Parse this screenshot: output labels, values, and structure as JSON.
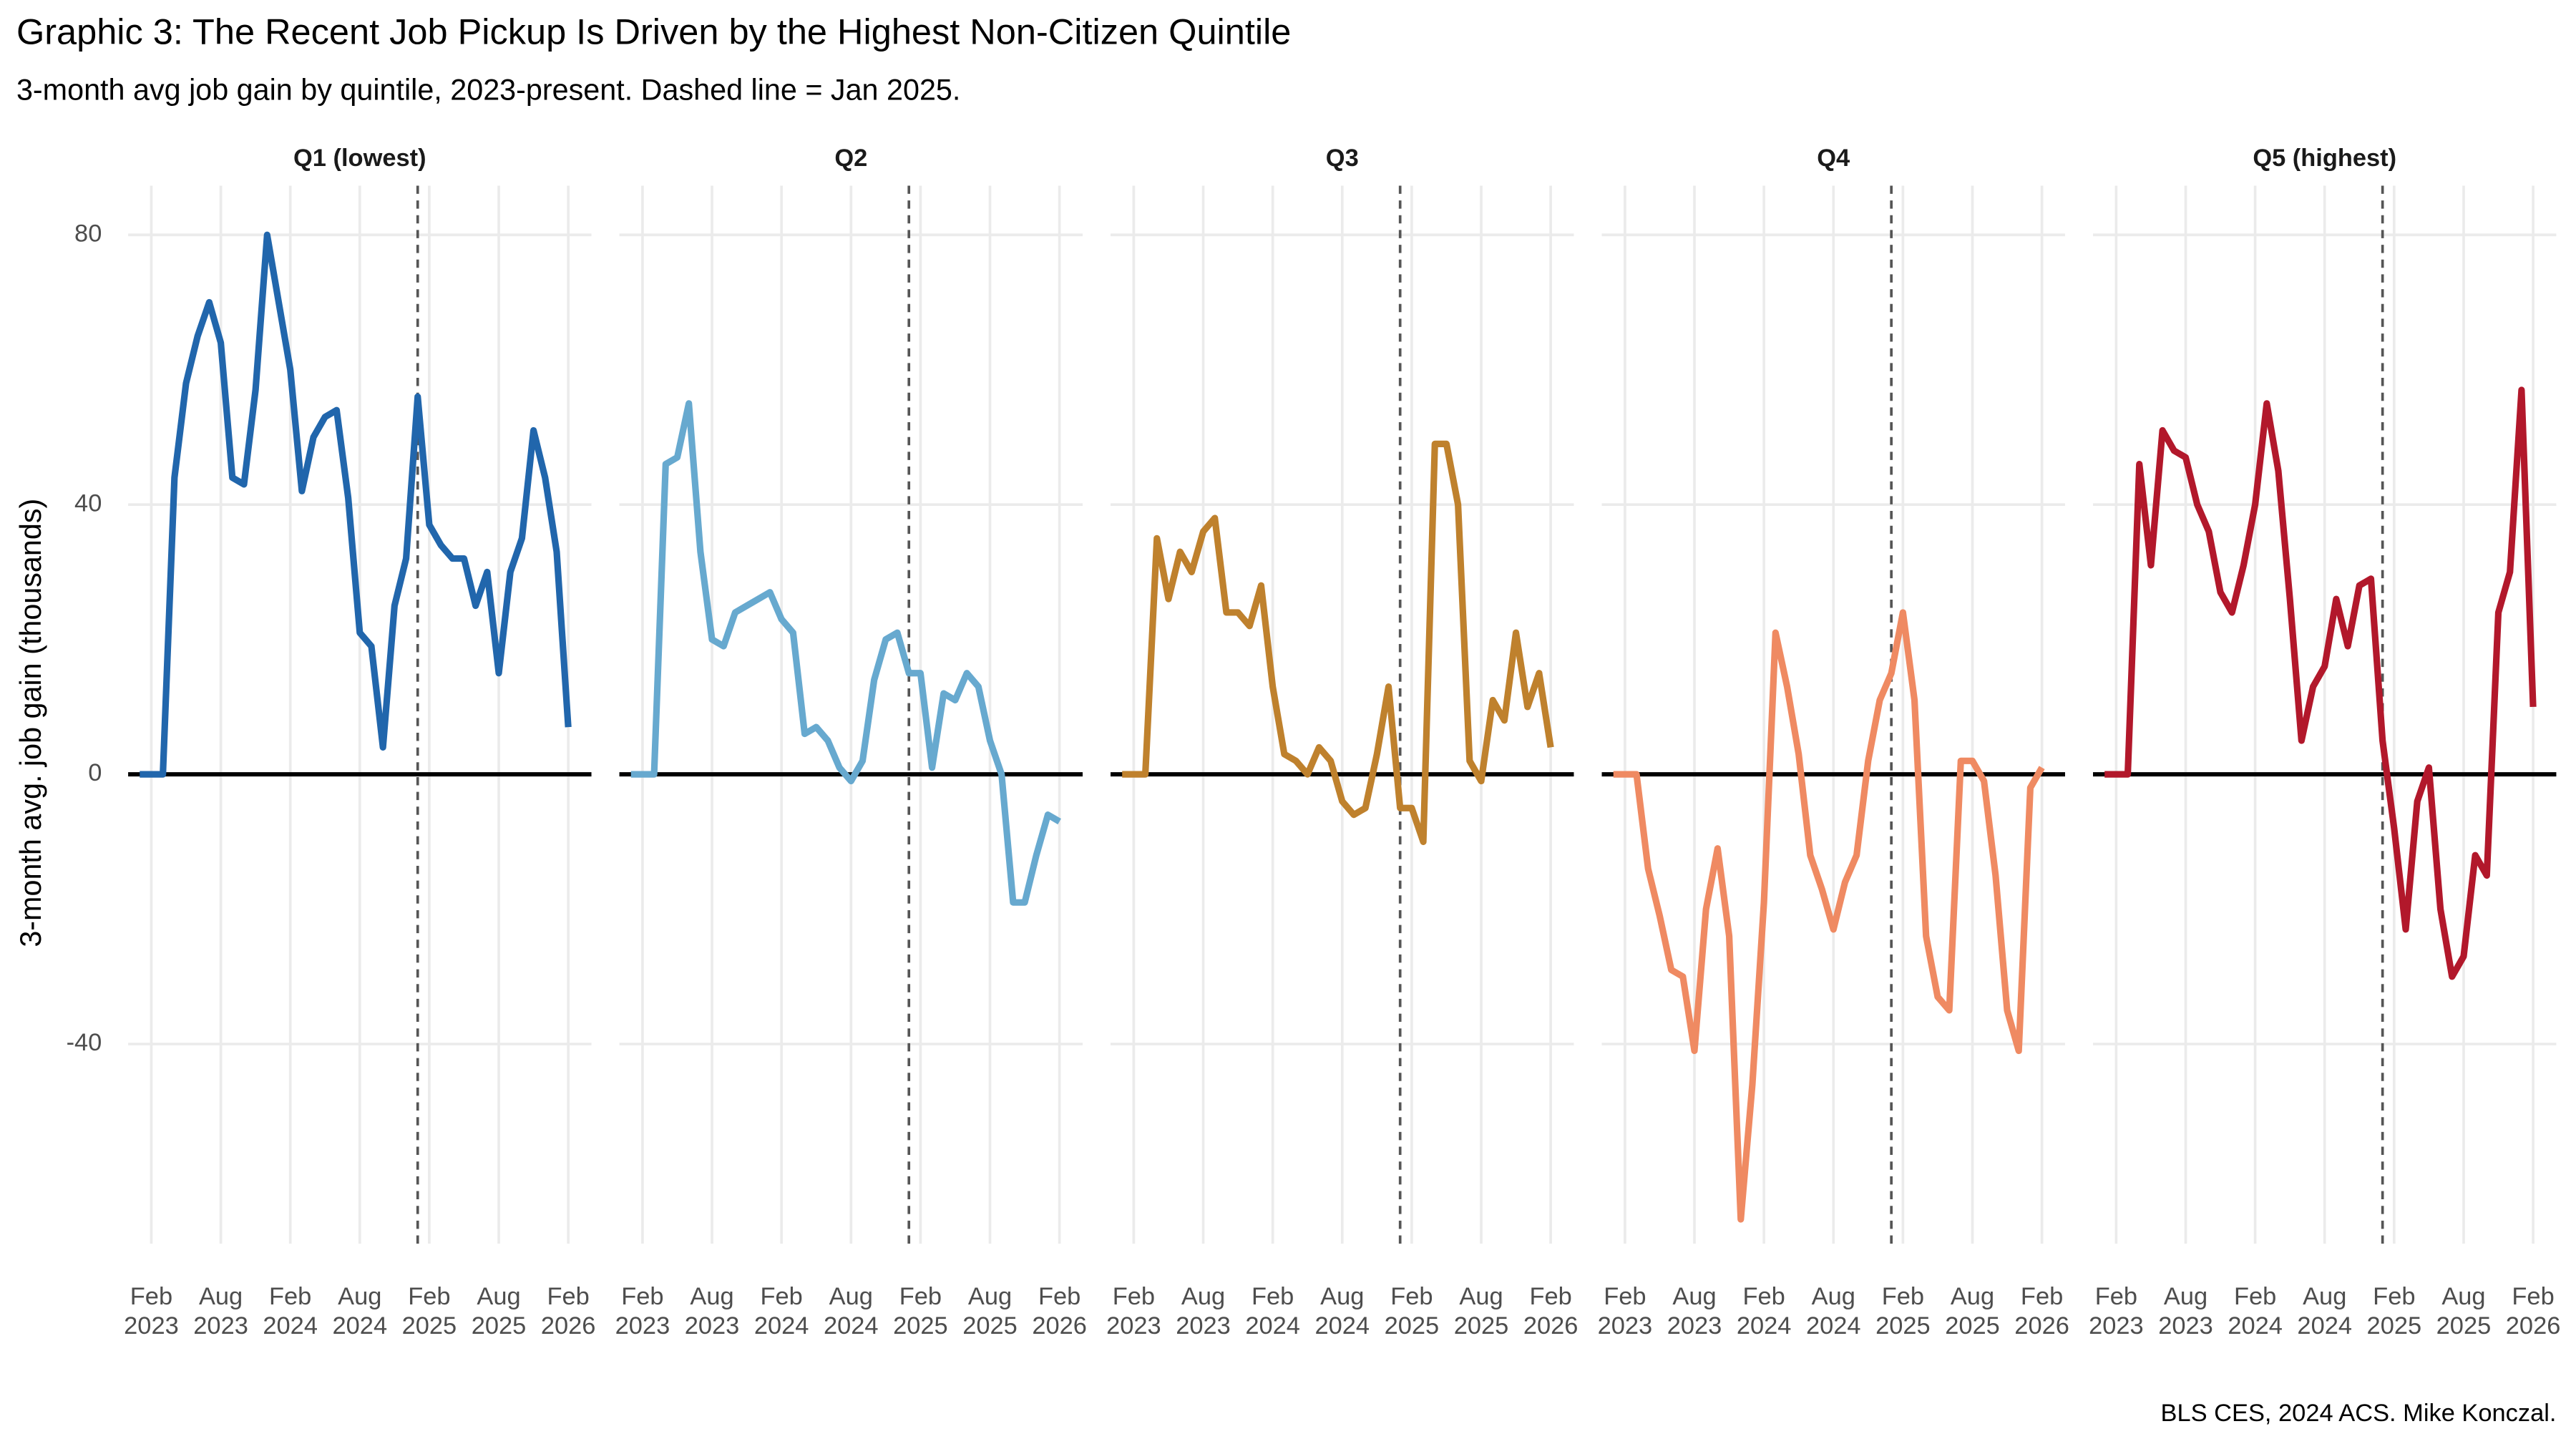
{
  "title": "Graphic 3: The Recent Job Pickup Is Driven by the Highest Non-Citizen Quintile",
  "subtitle": "3-month avg job gain by quintile, 2023-present. Dashed line = Jan 2025.",
  "y_label": "3-month avg. job gain (thousands)",
  "caption": "BLS CES, 2024 ACS. Mike Konczal.",
  "chart_data": [
    {
      "type": "line",
      "title": "Q1 (lowest)",
      "color": "#2166ac",
      "vline": "2025-01",
      "hline": 0,
      "grid": true,
      "x": [
        "2023-01",
        "2023-02",
        "2023-03",
        "2023-04",
        "2023-05",
        "2023-06",
        "2023-07",
        "2023-08",
        "2023-09",
        "2023-10",
        "2023-11",
        "2023-12",
        "2024-01",
        "2024-02",
        "2024-03",
        "2024-04",
        "2024-05",
        "2024-06",
        "2024-07",
        "2024-08",
        "2024-09",
        "2024-10",
        "2024-11",
        "2024-12",
        "2025-01",
        "2025-02",
        "2025-03",
        "2025-04",
        "2025-05",
        "2025-06",
        "2025-07",
        "2025-08",
        "2025-09",
        "2025-10",
        "2025-11",
        "2025-12",
        "2026-01",
        "2026-02"
      ],
      "values": [
        0,
        0,
        0,
        44,
        58,
        65,
        70,
        64,
        44,
        43,
        57,
        80,
        70,
        60,
        42,
        50,
        53,
        54,
        41,
        21,
        19,
        4,
        25,
        32,
        56,
        37,
        34,
        32,
        32,
        25,
        30,
        15,
        30,
        35,
        51,
        44,
        33,
        7
      ],
      "xlim": [
        "2022-12",
        "2026-04"
      ],
      "ylim": [
        -69.6,
        87.3
      ],
      "yticks": [
        -40,
        0,
        40,
        80
      ],
      "xticks": [
        {
          "value": "2023-02",
          "label": "Feb 2023"
        },
        {
          "value": "2023-08",
          "label": "Aug 2023"
        },
        {
          "value": "2024-02",
          "label": "Feb 2024"
        },
        {
          "value": "2024-08",
          "label": "Aug 2024"
        },
        {
          "value": "2025-02",
          "label": "Feb 2025"
        },
        {
          "value": "2025-08",
          "label": "Aug 2025"
        },
        {
          "value": "2026-02",
          "label": "Feb 2026"
        }
      ]
    },
    {
      "type": "line",
      "title": "Q2",
      "color": "#67a9cf",
      "vline": "2025-01",
      "hline": 0,
      "grid": true,
      "x": [
        "2023-01",
        "2023-02",
        "2023-03",
        "2023-04",
        "2023-05",
        "2023-06",
        "2023-07",
        "2023-08",
        "2023-09",
        "2023-10",
        "2023-11",
        "2023-12",
        "2024-01",
        "2024-02",
        "2024-03",
        "2024-04",
        "2024-05",
        "2024-06",
        "2024-07",
        "2024-08",
        "2024-09",
        "2024-10",
        "2024-11",
        "2024-12",
        "2025-01",
        "2025-02",
        "2025-03",
        "2025-04",
        "2025-05",
        "2025-06",
        "2025-07",
        "2025-08",
        "2025-09",
        "2025-10",
        "2025-11",
        "2025-12",
        "2026-01",
        "2026-02"
      ],
      "values": [
        0,
        0,
        0,
        46,
        47,
        55,
        33,
        20,
        19,
        24,
        25,
        26,
        27,
        23,
        21,
        6,
        7,
        5,
        1,
        -1,
        2,
        14,
        20,
        21,
        15,
        15,
        1,
        12,
        11,
        15,
        13,
        5,
        0,
        -19,
        -19,
        -12,
        -6,
        -7
      ],
      "xlim": [
        "2022-12",
        "2026-04"
      ],
      "ylim": [
        -69.6,
        87.3
      ],
      "yticks": [
        -40,
        0,
        40,
        80
      ],
      "xticks": [
        {
          "value": "2023-02",
          "label": "Feb 2023"
        },
        {
          "value": "2023-08",
          "label": "Aug 2023"
        },
        {
          "value": "2024-02",
          "label": "Feb 2024"
        },
        {
          "value": "2024-08",
          "label": "Aug 2024"
        },
        {
          "value": "2025-02",
          "label": "Feb 2025"
        },
        {
          "value": "2025-08",
          "label": "Aug 2025"
        },
        {
          "value": "2026-02",
          "label": "Feb 2026"
        }
      ]
    },
    {
      "type": "line",
      "title": "Q3",
      "color": "#bf812d",
      "vline": "2025-01",
      "hline": 0,
      "grid": true,
      "x": [
        "2023-01",
        "2023-02",
        "2023-03",
        "2023-04",
        "2023-05",
        "2023-06",
        "2023-07",
        "2023-08",
        "2023-09",
        "2023-10",
        "2023-11",
        "2023-12",
        "2024-01",
        "2024-02",
        "2024-03",
        "2024-04",
        "2024-05",
        "2024-06",
        "2024-07",
        "2024-08",
        "2024-09",
        "2024-10",
        "2024-11",
        "2024-12",
        "2025-01",
        "2025-02",
        "2025-03",
        "2025-04",
        "2025-05",
        "2025-06",
        "2025-07",
        "2025-08",
        "2025-09",
        "2025-10",
        "2025-11",
        "2025-12",
        "2026-01",
        "2026-02"
      ],
      "values": [
        0,
        0,
        0,
        35,
        26,
        33,
        30,
        36,
        38,
        24,
        24,
        22,
        28,
        13,
        3,
        2,
        0,
        4,
        2,
        -4,
        -6,
        -5,
        3,
        13,
        -5,
        -5,
        -10,
        49,
        49,
        40,
        2,
        -1,
        11,
        8,
        21,
        10,
        15,
        4
      ],
      "xlim": [
        "2022-12",
        "2026-04"
      ],
      "ylim": [
        -69.6,
        87.3
      ],
      "yticks": [
        -40,
        0,
        40,
        80
      ],
      "xticks": [
        {
          "value": "2023-02",
          "label": "Feb 2023"
        },
        {
          "value": "2023-08",
          "label": "Aug 2023"
        },
        {
          "value": "2024-02",
          "label": "Feb 2024"
        },
        {
          "value": "2024-08",
          "label": "Aug 2024"
        },
        {
          "value": "2025-02",
          "label": "Feb 2025"
        },
        {
          "value": "2025-08",
          "label": "Aug 2025"
        },
        {
          "value": "2026-02",
          "label": "Feb 2026"
        }
      ]
    },
    {
      "type": "line",
      "title": "Q4",
      "color": "#ef8a62",
      "vline": "2025-01",
      "hline": 0,
      "grid": true,
      "x": [
        "2023-01",
        "2023-02",
        "2023-03",
        "2023-04",
        "2023-05",
        "2023-06",
        "2023-07",
        "2023-08",
        "2023-09",
        "2023-10",
        "2023-11",
        "2023-12",
        "2024-01",
        "2024-02",
        "2024-03",
        "2024-04",
        "2024-05",
        "2024-06",
        "2024-07",
        "2024-08",
        "2024-09",
        "2024-10",
        "2024-11",
        "2024-12",
        "2025-01",
        "2025-02",
        "2025-03",
        "2025-04",
        "2025-05",
        "2025-06",
        "2025-07",
        "2025-08",
        "2025-09",
        "2025-10",
        "2025-11",
        "2025-12",
        "2026-01",
        "2026-02"
      ],
      "values": [
        0,
        0,
        0,
        -14,
        -21,
        -29,
        -30,
        -41,
        -20,
        -11,
        -24,
        -66,
        -46,
        -19,
        21,
        13,
        3,
        -12,
        -17,
        -23,
        -16,
        -12,
        2,
        11,
        15,
        24,
        11,
        -24,
        -33,
        -35,
        2,
        2,
        -1,
        -15,
        -35,
        -41,
        -2,
        1
      ],
      "xlim": [
        "2022-12",
        "2026-04"
      ],
      "ylim": [
        -69.6,
        87.3
      ],
      "yticks": [
        -40,
        0,
        40,
        80
      ],
      "xticks": [
        {
          "value": "2023-02",
          "label": "Feb 2023"
        },
        {
          "value": "2023-08",
          "label": "Aug 2023"
        },
        {
          "value": "2024-02",
          "label": "Feb 2024"
        },
        {
          "value": "2024-08",
          "label": "Aug 2024"
        },
        {
          "value": "2025-02",
          "label": "Feb 2025"
        },
        {
          "value": "2025-08",
          "label": "Aug 2025"
        },
        {
          "value": "2026-02",
          "label": "Feb 2026"
        }
      ]
    },
    {
      "type": "line",
      "title": "Q5 (highest)",
      "color": "#b2182b",
      "vline": "2025-01",
      "hline": 0,
      "grid": true,
      "x": [
        "2023-01",
        "2023-02",
        "2023-03",
        "2023-04",
        "2023-05",
        "2023-06",
        "2023-07",
        "2023-08",
        "2023-09",
        "2023-10",
        "2023-11",
        "2023-12",
        "2024-01",
        "2024-02",
        "2024-03",
        "2024-04",
        "2024-05",
        "2024-06",
        "2024-07",
        "2024-08",
        "2024-09",
        "2024-10",
        "2024-11",
        "2024-12",
        "2025-01",
        "2025-02",
        "2025-03",
        "2025-04",
        "2025-05",
        "2025-06",
        "2025-07",
        "2025-08",
        "2025-09",
        "2025-10",
        "2025-11",
        "2025-12",
        "2026-01",
        "2026-02"
      ],
      "values": [
        0,
        0,
        0,
        46,
        31,
        51,
        48,
        47,
        40,
        36,
        27,
        24,
        31,
        40,
        55,
        45,
        26,
        5,
        13,
        16,
        26,
        19,
        28,
        29,
        5,
        -8,
        -23,
        -4,
        1,
        -20,
        -30,
        -27,
        -12,
        -15,
        24,
        30,
        57,
        10
      ],
      "xlim": [
        "2022-12",
        "2026-04"
      ],
      "ylim": [
        -69.6,
        87.3
      ],
      "yticks": [
        -40,
        0,
        40,
        80
      ],
      "xticks": [
        {
          "value": "2023-02",
          "label": "Feb 2023"
        },
        {
          "value": "2023-08",
          "label": "Aug 2023"
        },
        {
          "value": "2024-02",
          "label": "Feb 2024"
        },
        {
          "value": "2024-08",
          "label": "Aug 2024"
        },
        {
          "value": "2025-02",
          "label": "Feb 2025"
        },
        {
          "value": "2025-08",
          "label": "Aug 2025"
        },
        {
          "value": "2026-02",
          "label": "Feb 2026"
        }
      ]
    }
  ]
}
